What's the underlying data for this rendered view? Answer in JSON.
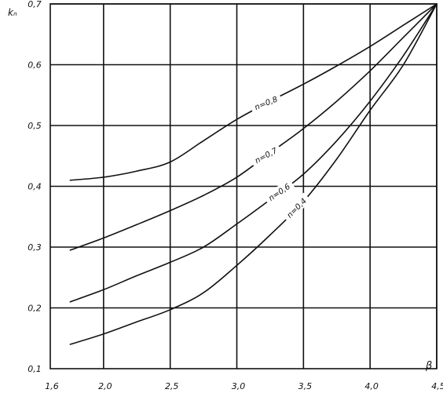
{
  "chart_data": {
    "type": "line",
    "xlabel": "β",
    "ylabel": "kₙ",
    "xlim": [
      1.6,
      4.5
    ],
    "ylim": [
      0.1,
      0.7
    ],
    "x_ticks": [
      "1,6",
      "2,0",
      "2,5",
      "3,0",
      "3,5",
      "4,0",
      "4,5"
    ],
    "y_ticks": [
      "0,1",
      "0,2",
      "0,3",
      "0,4",
      "0,5",
      "0,6",
      "0,7"
    ],
    "grid": true,
    "series": [
      {
        "name": "n=0,8",
        "x": [
          1.75,
          2.0,
          2.25,
          2.5,
          2.75,
          3.0,
          3.25,
          3.5,
          3.75,
          4.0,
          4.25,
          4.5
        ],
        "y": [
          0.41,
          0.415,
          0.425,
          0.44,
          0.475,
          0.51,
          0.54,
          0.568,
          0.598,
          0.63,
          0.665,
          0.7
        ]
      },
      {
        "name": "n=0,7",
        "x": [
          1.75,
          2.0,
          2.25,
          2.5,
          2.75,
          3.0,
          3.25,
          3.5,
          3.75,
          4.0,
          4.25,
          4.5
        ],
        "y": [
          0.295,
          0.315,
          0.337,
          0.36,
          0.385,
          0.415,
          0.455,
          0.495,
          0.54,
          0.59,
          0.645,
          0.7
        ]
      },
      {
        "name": "n=0,6",
        "x": [
          1.75,
          2.0,
          2.25,
          2.5,
          2.75,
          3.0,
          3.25,
          3.5,
          3.75,
          4.0,
          4.25,
          4.5
        ],
        "y": [
          0.21,
          0.23,
          0.253,
          0.275,
          0.3,
          0.338,
          0.378,
          0.42,
          0.475,
          0.54,
          0.615,
          0.7
        ]
      },
      {
        "name": "n=0,4",
        "x": [
          1.75,
          2.0,
          2.25,
          2.5,
          2.75,
          3.0,
          3.25,
          3.5,
          3.75,
          4.0,
          4.25,
          4.5
        ],
        "y": [
          0.14,
          0.157,
          0.177,
          0.197,
          0.225,
          0.27,
          0.32,
          0.375,
          0.445,
          0.525,
          0.6,
          0.7
        ]
      }
    ]
  }
}
